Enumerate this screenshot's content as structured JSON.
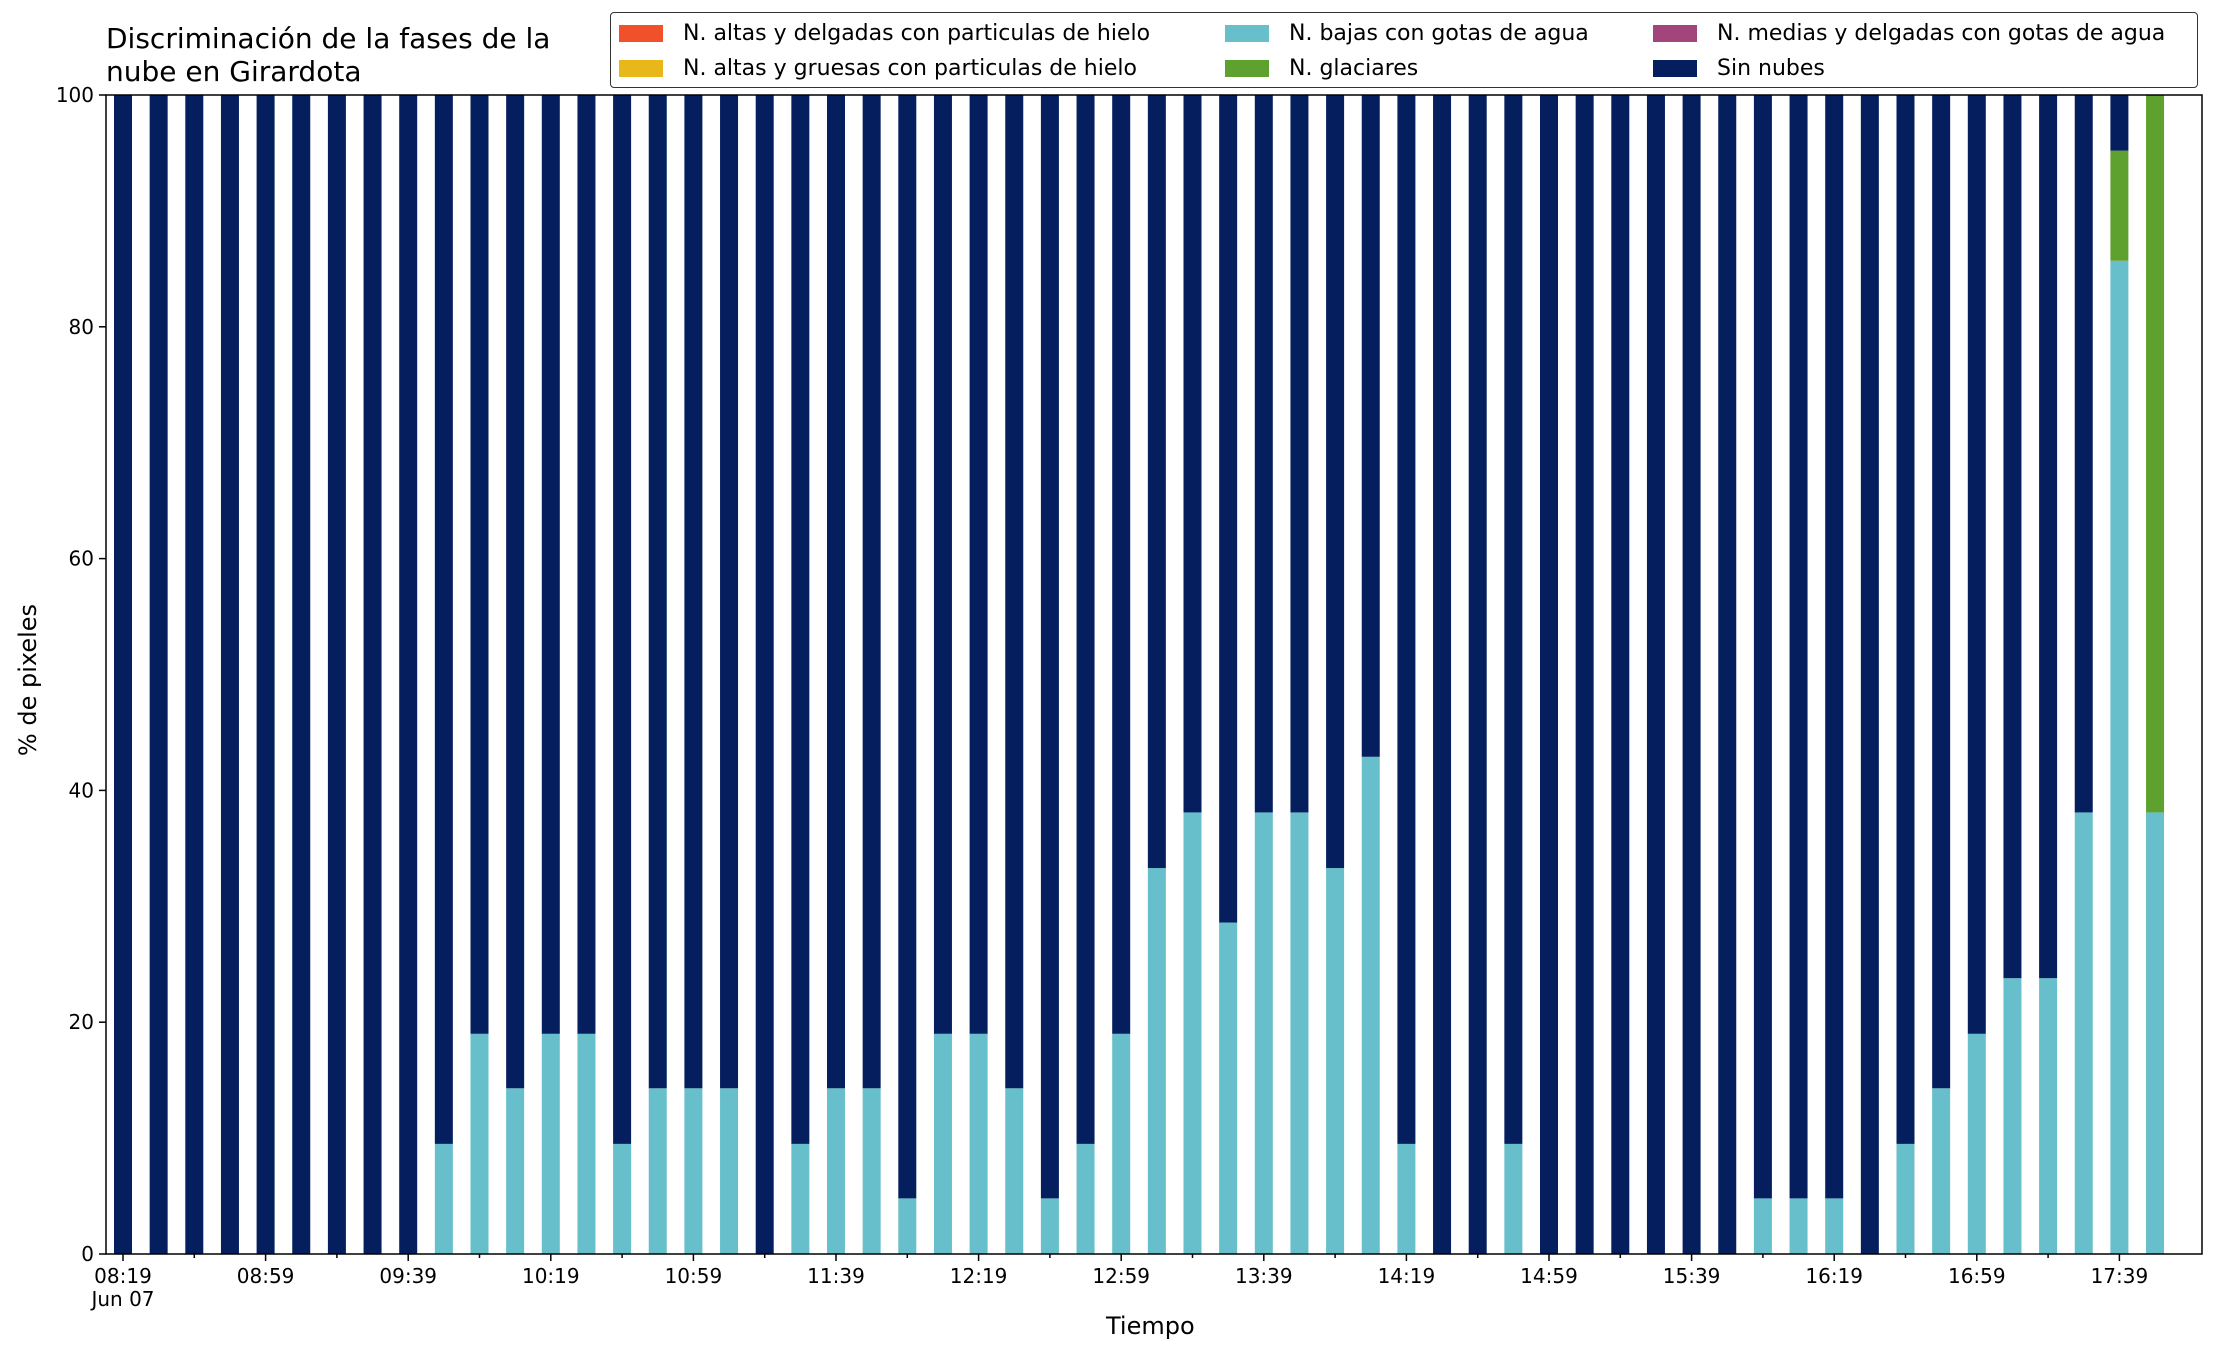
{
  "chart_data": {
    "type": "bar",
    "stacked": true,
    "title": "Discriminación de la fases de la\nnube en Girardota",
    "xlabel": "Tiempo",
    "ylabel": "% de pixeles",
    "ylim": [
      0,
      100
    ],
    "yticks": [
      0,
      20,
      40,
      60,
      80,
      100
    ],
    "xtick_labels": [
      "08:19\nJun 07",
      "08:59",
      "09:39",
      "10:19",
      "10:59",
      "11:39",
      "12:19",
      "12:59",
      "13:39",
      "14:19",
      "14:59",
      "15:39",
      "16:19",
      "16:59",
      "17:39"
    ],
    "xtick_every_bars": 4,
    "legend_position": "top-right",
    "grid": false,
    "categories": [
      "08:19",
      "08:29",
      "08:39",
      "08:49",
      "08:59",
      "09:09",
      "09:19",
      "09:29",
      "09:39",
      "09:49",
      "09:59",
      "10:09",
      "10:19",
      "10:29",
      "10:39",
      "10:49",
      "10:59",
      "11:09",
      "11:19",
      "11:29",
      "11:39",
      "11:49",
      "11:59",
      "12:09",
      "12:19",
      "12:29",
      "12:39",
      "12:49",
      "12:59",
      "13:09",
      "13:19",
      "13:29",
      "13:39",
      "13:49",
      "13:59",
      "14:09",
      "14:19",
      "14:29",
      "14:39",
      "14:49",
      "14:59",
      "15:09",
      "15:19",
      "15:29",
      "15:39",
      "15:49",
      "15:59",
      "16:09",
      "16:19",
      "16:29",
      "16:39",
      "16:49",
      "16:59",
      "17:09",
      "17:19",
      "17:29",
      "17:39",
      "17:49"
    ],
    "series": [
      {
        "name": "N. altas y delgadas con particulas de hielo",
        "color": "#f0502a",
        "values": [
          0,
          0,
          0,
          0,
          0,
          0,
          0,
          0,
          0,
          0,
          0,
          0,
          0,
          0,
          0,
          0,
          0,
          0,
          0,
          0,
          0,
          0,
          0,
          0,
          0,
          0,
          0,
          0,
          0,
          0,
          0,
          0,
          0,
          0,
          0,
          0,
          0,
          0,
          0,
          0,
          0,
          0,
          0,
          0,
          0,
          0,
          0,
          0,
          0,
          0,
          0,
          0,
          0,
          0,
          0,
          0,
          0,
          0
        ]
      },
      {
        "name": "N. altas y gruesas con particulas de hielo",
        "color": "#e8b81a",
        "values": [
          0,
          0,
          0,
          0,
          0,
          0,
          0,
          0,
          0,
          0,
          0,
          0,
          0,
          0,
          0,
          0,
          0,
          0,
          0,
          0,
          0,
          0,
          0,
          0,
          0,
          0,
          0,
          0,
          0,
          0,
          0,
          0,
          0,
          0,
          0,
          0,
          0,
          0,
          0,
          0,
          0,
          0,
          0,
          0,
          0,
          0,
          0,
          0,
          0,
          0,
          0,
          0,
          0,
          0,
          0,
          0,
          0,
          0
        ]
      },
      {
        "name": "N. bajas con gotas de agua",
        "color": "#66bfca",
        "values": [
          0,
          0,
          0,
          0,
          0,
          0,
          0,
          0,
          0,
          9.5,
          19,
          14.3,
          19,
          19,
          9.5,
          14.3,
          14.3,
          14.3,
          0,
          9.5,
          14.3,
          14.3,
          4.8,
          19,
          19,
          14.3,
          4.8,
          9.5,
          19,
          33.3,
          38.1,
          28.6,
          38.1,
          38.1,
          33.3,
          42.9,
          9.5,
          0,
          0,
          9.5,
          0,
          0,
          0,
          0,
          0,
          0,
          4.8,
          4.8,
          4.8,
          0,
          9.5,
          14.3,
          19,
          23.8,
          23.8,
          38.1,
          85.7,
          38.1
        ]
      },
      {
        "name": "N. glaciares",
        "color": "#5fa12f",
        "values": [
          0,
          0,
          0,
          0,
          0,
          0,
          0,
          0,
          0,
          0,
          0,
          0,
          0,
          0,
          0,
          0,
          0,
          0,
          0,
          0,
          0,
          0,
          0,
          0,
          0,
          0,
          0,
          0,
          0,
          0,
          0,
          0,
          0,
          0,
          0,
          0,
          0,
          0,
          0,
          0,
          0,
          0,
          0,
          0,
          0,
          0,
          0,
          0,
          0,
          0,
          0,
          0,
          0,
          0,
          0,
          0,
          9.5,
          61.9
        ]
      },
      {
        "name": "N. medias y delgadas con gotas de agua",
        "color": "#a1457a",
        "values": [
          0,
          0,
          0,
          0,
          0,
          0,
          0,
          0,
          0,
          0,
          0,
          0,
          0,
          0,
          0,
          0,
          0,
          0,
          0,
          0,
          0,
          0,
          0,
          0,
          0,
          0,
          0,
          0,
          0,
          0,
          0,
          0,
          0,
          0,
          0,
          0,
          0,
          0,
          0,
          0,
          0,
          0,
          0,
          0,
          0,
          0,
          0,
          0,
          0,
          0,
          0,
          0,
          0,
          0,
          0,
          0,
          0,
          0
        ]
      },
      {
        "name": "Sin nubes",
        "color": "#041e5e",
        "values": [
          100,
          100,
          100,
          100,
          100,
          100,
          100,
          100,
          100,
          90.5,
          81,
          85.7,
          81,
          81,
          90.5,
          85.7,
          85.7,
          85.7,
          100,
          90.5,
          85.7,
          85.7,
          95.2,
          81,
          81,
          85.7,
          95.2,
          90.5,
          81,
          66.7,
          61.9,
          71.4,
          61.9,
          61.9,
          66.7,
          57.1,
          90.5,
          100,
          100,
          90.5,
          100,
          100,
          100,
          100,
          100,
          100,
          95.2,
          95.2,
          95.2,
          100,
          90.5,
          85.7,
          81,
          76.2,
          76.2,
          61.9,
          4.8,
          0
        ]
      }
    ],
    "stack_order": [
      "N. bajas con gotas de agua",
      "N. glaciares",
      "N. altas y delgadas con particulas de hielo",
      "N. altas y gruesas con particulas de hielo",
      "N. medias y delgadas con gotas de agua",
      "Sin nubes"
    ]
  }
}
